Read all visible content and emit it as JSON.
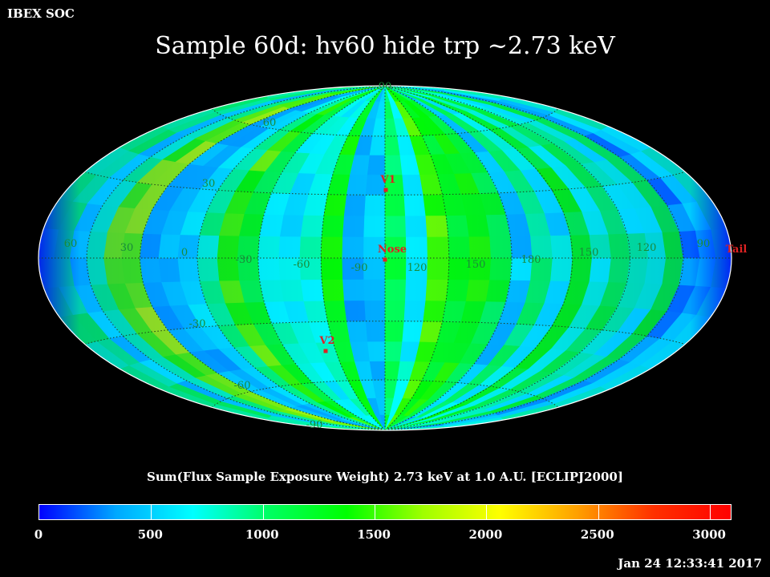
{
  "header": {
    "organization": "IBEX SOC",
    "title": "Sample 60d: hv60 hide trp ~2.73 keV"
  },
  "map": {
    "projection": "hammer-aitoff",
    "frame": "ECLIPJ2000",
    "outline_color": "#ffffff",
    "grid_color": "#1f3f1f",
    "grid_label_color": "#1a8a3a",
    "marker_color": "#dd2222",
    "latitude_labels": [
      "-60",
      "-30",
      "30",
      "60",
      "90",
      "-90"
    ],
    "longitude_labels": [
      "60",
      "30",
      "0",
      "-30",
      "-60",
      "-90",
      "120",
      "150",
      "180",
      "150",
      "120",
      "90"
    ],
    "markers": [
      {
        "label": "V1"
      },
      {
        "label": "Nose"
      },
      {
        "label": "V2"
      },
      {
        "label": "Tail"
      }
    ]
  },
  "colorbar": {
    "title": "Sum(Flux Sample Exposure Weight)  2.73 keV at 1.0 A.U. [ECLIPJ2000]",
    "min": 0,
    "max": 3100,
    "ticks": [
      "0",
      "500",
      "1000",
      "1500",
      "2000",
      "2500",
      "3000"
    ],
    "colors": [
      "#0000ff",
      "#00a8ff",
      "#00ffff",
      "#00ff60",
      "#00ff00",
      "#a0ff00",
      "#ffff00",
      "#ffa000",
      "#ff3000",
      "#ff0000"
    ]
  },
  "footer": {
    "timestamp": "Jan 24 12:33:41 2017"
  }
}
